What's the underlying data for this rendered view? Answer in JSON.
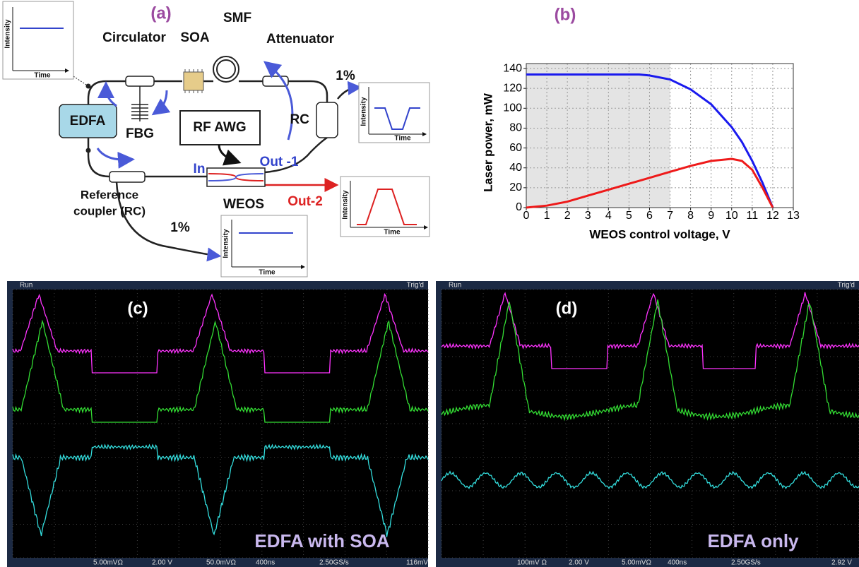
{
  "panel_a": {
    "label": "(a)",
    "components": {
      "circulator": "Circulator",
      "soa": "SOA",
      "smf": "SMF",
      "attenuator": "Attenuator",
      "edfa": "EDFA",
      "fbg": "FBG",
      "rf_awg": "RF AWG",
      "rc": "RC",
      "weos": "WEOS",
      "in": "In",
      "out1": "Out -1",
      "out2": "Out-2",
      "reference_line1": "Reference",
      "reference_line2": "coupler (RC)",
      "tap_top": "1%",
      "tap_bottom": "1%"
    },
    "insets": [
      {
        "y_label": "Intensity",
        "x_label": "Time"
      },
      {
        "y_label": "Intensity",
        "x_label": "Time"
      },
      {
        "y_label": "Intensity",
        "x_label": "Time"
      },
      {
        "y_label": "Intensity",
        "x_label": "Time"
      }
    ]
  },
  "chart_data": {
    "type": "line",
    "title": "(b)",
    "x_label": "WEOS control voltage, V",
    "y_label": "Laser power, mW",
    "x": [
      0,
      1,
      2,
      3,
      4,
      5,
      5.5,
      6,
      7,
      8,
      9,
      10,
      10.5,
      11,
      11.5,
      12
    ],
    "series": [
      {
        "color": "#1a1aee",
        "values": [
          134,
          134,
          134,
          134,
          134,
          134,
          134,
          133,
          129,
          119,
          104,
          81,
          66,
          47,
          25,
          0
        ]
      },
      {
        "color": "#ee1a1a",
        "values": [
          0,
          2,
          6,
          12,
          18,
          24,
          27,
          30,
          36,
          42,
          47,
          49,
          47,
          38,
          20,
          0
        ]
      }
    ],
    "xlim": [
      0,
      13
    ],
    "ylim": [
      0,
      145
    ],
    "xticks": [
      0,
      1,
      2,
      3,
      4,
      5,
      6,
      7,
      8,
      9,
      10,
      11,
      12,
      13
    ],
    "yticks": [
      0,
      20,
      40,
      60,
      80,
      100,
      120,
      140
    ],
    "grid": true,
    "highlight_xrange": [
      0,
      7
    ],
    "highlight_color": "#e4e4e4"
  },
  "panel_c": {
    "label": "(c)",
    "caption": "EDFA with SOA",
    "status": "Run",
    "trigger": "Trig'd",
    "readouts": [
      "5.00mVΩ",
      "2.00 V",
      "50.0mVΩ",
      "400ns",
      "2.50GS/s",
      "116mV"
    ]
  },
  "panel_d": {
    "label": "(d)",
    "caption": "EDFA only",
    "status": "Run",
    "trigger": "Trig'd",
    "readouts": [
      "100mV Ω",
      "2.00 V",
      "5.00mVΩ",
      "400ns",
      "2.50GS/s",
      "2.92 V"
    ]
  }
}
